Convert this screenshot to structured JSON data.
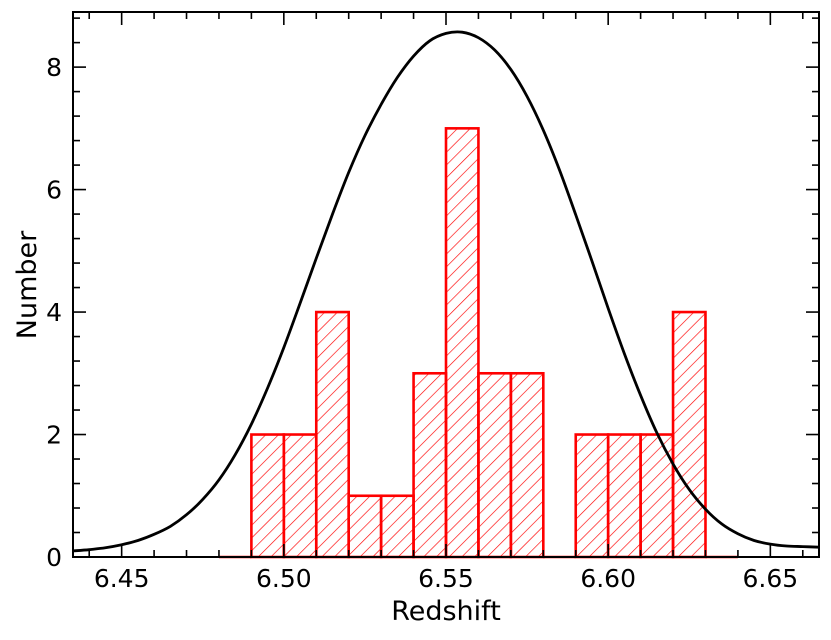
{
  "chart_data": {
    "type": "bar",
    "title": "",
    "xlabel": "Redshift",
    "ylabel": "Number",
    "xlim": [
      6.435,
      6.665
    ],
    "ylim": [
      0,
      8.9
    ],
    "x_ticks": [
      6.45,
      6.5,
      6.55,
      6.6,
      6.65
    ],
    "x_tick_labels": [
      "6.45",
      "6.50",
      "6.55",
      "6.60",
      "6.65"
    ],
    "y_ticks": [
      0,
      2,
      4,
      6,
      8
    ],
    "y_tick_labels": [
      "0",
      "2",
      "4",
      "6",
      "8"
    ],
    "grid": false,
    "histogram": {
      "style": "step, red hatched fill",
      "color": "#ff0000",
      "bin_edges": [
        6.48,
        6.49,
        6.5,
        6.51,
        6.52,
        6.53,
        6.54,
        6.55,
        6.56,
        6.57,
        6.58,
        6.59,
        6.6,
        6.61,
        6.62,
        6.63,
        6.64
      ],
      "counts": [
        0,
        2,
        2,
        4,
        1,
        1,
        3,
        7,
        3,
        3,
        0,
        2,
        2,
        2,
        4,
        0
      ]
    },
    "curve": {
      "style": "line",
      "color": "#000000",
      "x": [
        6.435,
        6.44,
        6.445,
        6.45,
        6.455,
        6.46,
        6.465,
        6.47,
        6.475,
        6.48,
        6.485,
        6.49,
        6.495,
        6.5,
        6.505,
        6.51,
        6.515,
        6.52,
        6.525,
        6.53,
        6.535,
        6.54,
        6.545,
        6.55,
        6.555,
        6.56,
        6.565,
        6.57,
        6.575,
        6.58,
        6.585,
        6.59,
        6.595,
        6.6,
        6.605,
        6.61,
        6.615,
        6.62,
        6.625,
        6.63,
        6.635,
        6.64,
        6.645,
        6.65,
        6.655,
        6.66,
        6.665
      ],
      "y": [
        0.1,
        0.12,
        0.15,
        0.2,
        0.27,
        0.37,
        0.5,
        0.69,
        0.94,
        1.26,
        1.67,
        2.17,
        2.76,
        3.42,
        4.14,
        4.88,
        5.6,
        6.28,
        6.88,
        7.39,
        7.83,
        8.18,
        8.43,
        8.55,
        8.57,
        8.48,
        8.28,
        7.96,
        7.52,
        6.97,
        6.32,
        5.59,
        4.83,
        4.06,
        3.32,
        2.64,
        2.03,
        1.52,
        1.1,
        0.78,
        0.54,
        0.38,
        0.27,
        0.21,
        0.18,
        0.17,
        0.16
      ]
    }
  }
}
